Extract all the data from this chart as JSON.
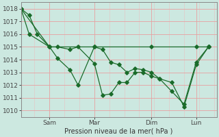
{
  "background_color": "#cce8e0",
  "grid_color_major": "#e8a0a0",
  "grid_color_minor": "#e8c0c0",
  "line_color": "#1a6b2a",
  "title": "Pression niveau de la mer( hPa )",
  "ylabel_values": [
    1010,
    1011,
    1012,
    1013,
    1014,
    1015,
    1016,
    1017,
    1018
  ],
  "xtick_labels": [
    "Sam",
    "Mar",
    "Dim",
    "Lun"
  ],
  "xtick_positions": [
    7,
    18,
    32,
    43
  ],
  "xlim": [
    0,
    48
  ],
  "ylim": [
    1009.5,
    1018.5
  ],
  "line1_x": [
    0,
    2,
    4,
    7,
    9,
    12,
    14,
    18,
    20,
    22,
    24,
    26,
    28,
    30,
    32,
    34,
    37,
    40,
    43,
    46
  ],
  "line1_y": [
    1018.0,
    1017.5,
    1016.0,
    1015.0,
    1014.1,
    1013.2,
    1012.0,
    1015.0,
    1014.8,
    1013.8,
    1013.6,
    1013.0,
    1013.3,
    1013.2,
    1013.0,
    1012.5,
    1012.2,
    1010.3,
    1013.6,
    1015.0
  ],
  "line2_x": [
    0,
    2,
    7,
    9,
    12,
    14,
    18,
    20,
    22,
    24,
    26,
    28,
    30,
    32,
    34,
    37,
    40,
    43,
    46
  ],
  "line2_y": [
    1018.0,
    1016.0,
    1015.0,
    1015.0,
    1014.8,
    1015.0,
    1013.7,
    1011.2,
    1011.3,
    1012.2,
    1012.2,
    1013.0,
    1013.0,
    1012.7,
    1012.5,
    1011.5,
    1010.5,
    1013.8,
    1015.0
  ],
  "line3_x": [
    0,
    7,
    18,
    32,
    43,
    46
  ],
  "line3_y": [
    1018.0,
    1015.0,
    1015.0,
    1015.0,
    1015.0,
    1015.0
  ]
}
